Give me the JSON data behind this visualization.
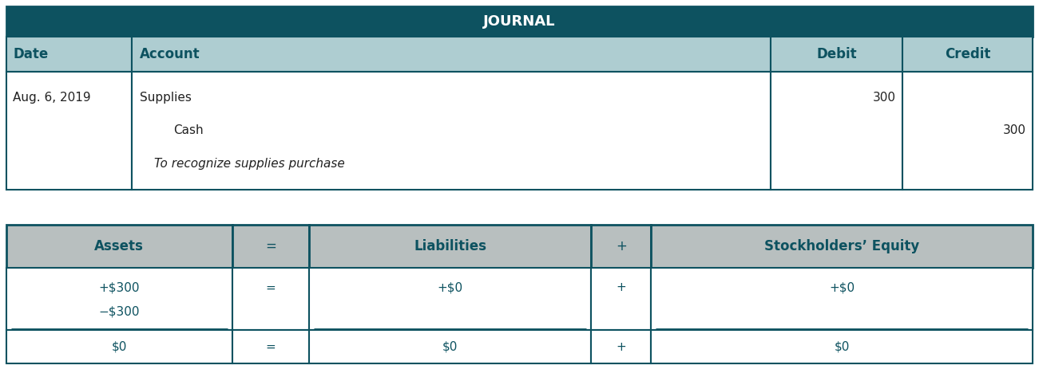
{
  "title": "JOURNAL",
  "header_bg": "#0d5260",
  "header_text_color": "#ffffff",
  "subheader_bg": "#aecdd1",
  "subheader_text_color": "#0d5260",
  "row_bg": "#ffffff",
  "border_color": "#0d5260",
  "col_headers": [
    "Date",
    "Account",
    "Debit",
    "Credit"
  ],
  "date": "Aug. 6, 2019",
  "account_line1": "Supplies",
  "account_line2": "Cash",
  "account_line3": "To recognize supplies purchase",
  "debit_value": "300",
  "credit_value": "300",
  "eq_title_bg": "#b8bfbf",
  "eq_header_text_color": "#0d5260",
  "eq_row_bg": "#ffffff",
  "eq_border_color": "#0d5260",
  "eq_headers": [
    "Assets",
    "=",
    "Liabilities",
    "+",
    "Stockholders’ Equity"
  ],
  "eq_line1": [
    "+$300",
    "=",
    "+$0",
    "+",
    "+$0"
  ],
  "eq_line2": [
    "−$300",
    "",
    "",
    "",
    ""
  ],
  "eq_totals": [
    "$0",
    "=",
    "$0",
    "+",
    "$0"
  ],
  "fig_width": 13.01,
  "fig_height": 4.68,
  "dpi": 100
}
